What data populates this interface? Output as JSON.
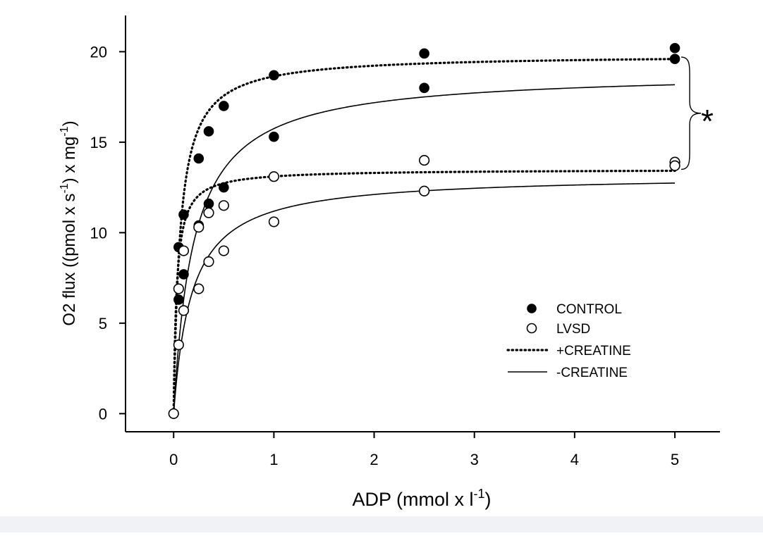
{
  "chart_data": {
    "type": "scatter",
    "xlabel": "ADP (mmol x l",
    "xlabel_sup": "-1",
    "xlabel_end": ")",
    "ylabel_parts": [
      "O2 flux ((pmol x s",
      "-1",
      ") x mg",
      "-1",
      ")"
    ],
    "xlim": [
      -0.48,
      5.45
    ],
    "ylim": [
      -1.0,
      22.0
    ],
    "x_ticks": [
      0,
      1,
      2,
      3,
      4,
      5
    ],
    "x_tick_labels": [
      "0",
      "1",
      "2",
      "3",
      "4",
      "5"
    ],
    "y_ticks": [
      0,
      5,
      10,
      15,
      20
    ],
    "y_tick_labels": [
      "0",
      "5",
      "10",
      "15",
      "20"
    ],
    "grid": false,
    "legend_position": "lower-right",
    "legend": [
      {
        "label": "CONTROL",
        "symbol": "filled-circle"
      },
      {
        "label": "LVSD",
        "symbol": "open-circle"
      },
      {
        "label": "+CREATINE",
        "symbol": "dotted-line"
      },
      {
        "label": "-CREATINE",
        "symbol": "solid-line"
      }
    ],
    "significance": {
      "label": "*",
      "spans_y": [
        13.5,
        19.7
      ]
    },
    "point_series": [
      {
        "name": "CONTROL",
        "marker": "filled",
        "points": [
          [
            0,
            0
          ],
          [
            0.05,
            9.2
          ],
          [
            0.05,
            6.3
          ],
          [
            0.1,
            11.0
          ],
          [
            0.1,
            7.7
          ],
          [
            0.25,
            14.1
          ],
          [
            0.25,
            10.4
          ],
          [
            0.35,
            15.6
          ],
          [
            0.35,
            11.6
          ],
          [
            0.5,
            17.0
          ],
          [
            0.5,
            12.5
          ],
          [
            1,
            18.7
          ],
          [
            1,
            15.3
          ],
          [
            2.5,
            19.9
          ],
          [
            2.5,
            18.0
          ],
          [
            5,
            20.2
          ],
          [
            5,
            19.6
          ]
        ]
      },
      {
        "name": "LVSD",
        "marker": "open",
        "points": [
          [
            0,
            0
          ],
          [
            0.05,
            6.9
          ],
          [
            0.05,
            3.8
          ],
          [
            0.1,
            9.0
          ],
          [
            0.1,
            5.7
          ],
          [
            0.25,
            10.3
          ],
          [
            0.25,
            6.9
          ],
          [
            0.35,
            11.1
          ],
          [
            0.35,
            8.4
          ],
          [
            0.5,
            11.5
          ],
          [
            0.5,
            9.0
          ],
          [
            1,
            13.1
          ],
          [
            1,
            10.6
          ],
          [
            2.5,
            14.0
          ],
          [
            2.5,
            12.3
          ],
          [
            5,
            13.9
          ],
          [
            5,
            13.7
          ]
        ]
      }
    ],
    "curves": [
      {
        "name": "CONTROL +CREATINE",
        "style": "dotted",
        "vmax": 19.85,
        "km": 0.065
      },
      {
        "name": "CONTROL -CREATINE",
        "style": "solid",
        "vmax": 18.9,
        "km": 0.2
      },
      {
        "name": "LVSD +CREATINE",
        "style": "dotted",
        "vmax": 13.5,
        "km": 0.03
      },
      {
        "name": "LVSD -CREATINE",
        "style": "solid",
        "vmax": 13.2,
        "km": 0.18
      }
    ]
  }
}
